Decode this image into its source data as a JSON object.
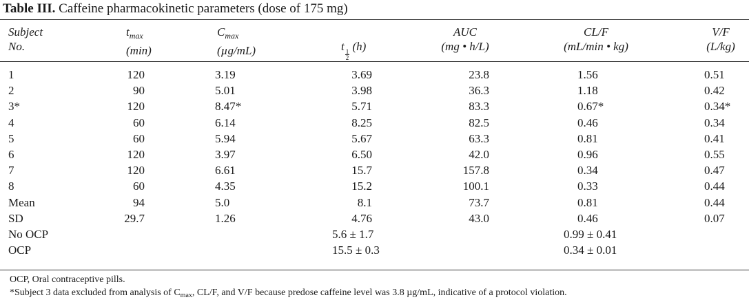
{
  "table": {
    "label": "Table III.",
    "caption": "Caffeine pharmacokinetic parameters (dose of 175 mg)",
    "headers": {
      "subject_line1": "Subject",
      "subject_line2": "No.",
      "tmax_base": "t",
      "tmax_sub": "max",
      "tmax_unit": "(min)",
      "cmax_base": "C",
      "cmax_sub": "max",
      "cmax_unit": "(µg/mL)",
      "thalf_base": "t",
      "thalf_num": "1",
      "thalf_den": "2",
      "thalf_unit": "(h)",
      "auc": "AUC",
      "auc_unit": "(mg • h/L)",
      "clf": "CL/F",
      "clf_unit": "(mL/min • kg)",
      "vf": "V/F",
      "vf_unit": "(L/kg)"
    },
    "rows": [
      {
        "subject": "1",
        "tmax": "120",
        "cmax": "3.19",
        "thalf": "3.69",
        "auc": "23.8",
        "clf": "1.56",
        "vf": "0.51"
      },
      {
        "subject": "2",
        "tmax": "90",
        "cmax": "5.01",
        "thalf": "3.98",
        "auc": "36.3",
        "clf": "1.18",
        "vf": "0.42"
      },
      {
        "subject": "3*",
        "tmax": "120",
        "cmax": "8.47*",
        "thalf": "5.71",
        "auc": "83.3",
        "clf": "0.67*",
        "vf": "0.34*"
      },
      {
        "subject": "4",
        "tmax": "60",
        "cmax": "6.14",
        "thalf": "8.25",
        "auc": "82.5",
        "clf": "0.46",
        "vf": "0.34"
      },
      {
        "subject": "5",
        "tmax": "60",
        "cmax": "5.94",
        "thalf": "5.67",
        "auc": "63.3",
        "clf": "0.81",
        "vf": "0.41"
      },
      {
        "subject": "6",
        "tmax": "120",
        "cmax": "3.97",
        "thalf": "6.50",
        "auc": "42.0",
        "clf": "0.96",
        "vf": "0.55"
      },
      {
        "subject": "7",
        "tmax": "120",
        "cmax": "6.61",
        "thalf": "15.7",
        "auc": "157.8",
        "clf": "0.34",
        "vf": "0.47"
      },
      {
        "subject": "8",
        "tmax": "60",
        "cmax": "4.35",
        "thalf": "15.2",
        "auc": "100.1",
        "clf": "0.33",
        "vf": "0.44"
      },
      {
        "subject": "Mean",
        "tmax": "94",
        "cmax": "5.0",
        "thalf": "8.1",
        "auc": "73.7",
        "clf": "0.81",
        "vf": "0.44"
      },
      {
        "subject": "SD",
        "tmax": "29.7",
        "cmax": "1.26",
        "thalf": "4.76",
        "auc": "43.0",
        "clf": "0.46",
        "vf": "0.07"
      }
    ],
    "groups": [
      {
        "label": "No OCP",
        "thalf": "5.6 ± 1.7",
        "clf": "0.99 ± 0.41"
      },
      {
        "label": "OCP",
        "thalf": "15.5 ± 0.3",
        "clf": "0.34 ± 0.01"
      }
    ],
    "footnotes": {
      "abbrev": "OCP, Oral contraceptive pills.",
      "exclusion_pre": "*Subject 3 data excluded from analysis of C",
      "exclusion_sub": "max",
      "exclusion_post": ", CL/F, and V/F because predose caffeine level was 3.8 µg/mL, indicative of a protocol violation."
    }
  }
}
